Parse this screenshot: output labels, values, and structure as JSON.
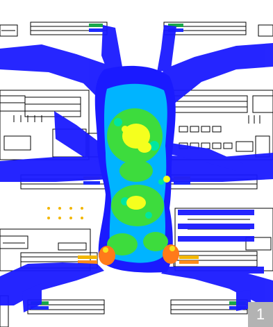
{
  "figure": {
    "badge_number": "1",
    "heatmap_palette": [
      "#1a1aff",
      "#00b4ff",
      "#00e6a0",
      "#3ddc3d",
      "#f5ff1e",
      "#ff7a1a"
    ],
    "linework_color": "#000000",
    "background_color": "#ffffff"
  }
}
